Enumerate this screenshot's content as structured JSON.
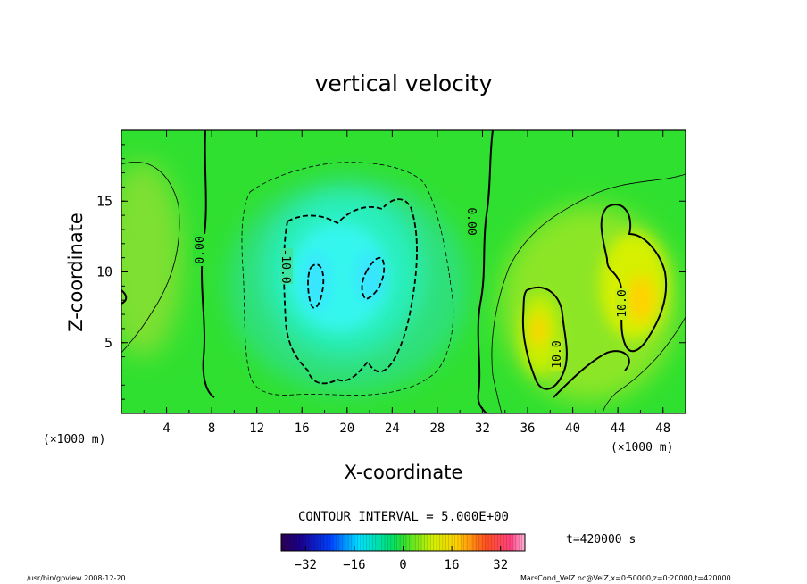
{
  "chart_data": {
    "type": "heatmap",
    "title": "vertical velocity",
    "xlabel": "X-coordinate",
    "ylabel": "Z-coordinate",
    "x_unit_left": "(×1000 m)",
    "x_unit_right": "(×1000 m)",
    "xlim": [
      0,
      50
    ],
    "ylim": [
      0,
      20
    ],
    "x_ticks": [
      "4",
      "8",
      "12",
      "16",
      "20",
      "24",
      "28",
      "32",
      "36",
      "40",
      "44",
      "48"
    ],
    "y_ticks": [
      "5",
      "10",
      "15"
    ],
    "contour_interval_text": "CONTOUR INTERVAL = 5.000E+00",
    "time_text": "t=420000  s",
    "contour_labels": [
      "0.00",
      "-10.0",
      "0.00",
      "-10.0",
      "10.0",
      "10.0"
    ],
    "colorbar": {
      "range": [
        -40,
        40
      ],
      "ticks": [
        "−32",
        "−16",
        "0",
        "16",
        "32"
      ]
    },
    "field_regions": [
      {
        "kind": "updraft",
        "x": [
          45,
          48
        ],
        "z": [
          7,
          11
        ],
        "value": 15
      },
      {
        "kind": "updraft",
        "x": [
          36,
          40
        ],
        "z": [
          4,
          9
        ],
        "value": 12
      },
      {
        "kind": "updraft",
        "x": [
          0,
          4
        ],
        "z": [
          8,
          16
        ],
        "value": 4
      },
      {
        "kind": "downdraft",
        "x": [
          16,
          26
        ],
        "z": [
          5,
          13
        ],
        "value": -15
      }
    ],
    "grid": false
  },
  "footer": {
    "left": "/usr/bin/gpview   2008-12-20",
    "right": "MarsCond_VelZ.nc@VelZ,x=0:50000,z=0:20000,t=420000"
  }
}
